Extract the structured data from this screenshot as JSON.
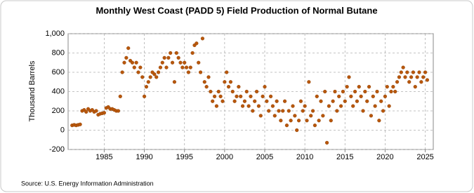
{
  "chart_data": {
    "type": "scatter",
    "title": "Monthly West Coast (PADD 5) Field Production of Normal Butane",
    "y_label": "Thousand Barrels",
    "source": "Source: U.S. Energy Information Administration",
    "color": "#b8570c",
    "grid": true,
    "xlim": [
      1980.5,
      2026
    ],
    "ylim": [
      -200,
      1000
    ],
    "xticks": [
      1985,
      1990,
      1995,
      2000,
      2005,
      2010,
      2015,
      2020,
      2025
    ],
    "yticks": [
      -200,
      0,
      200,
      400,
      600,
      800,
      {
        "value": 1000,
        "label": "1,000"
      }
    ],
    "x": [
      1981,
      1981.25,
      1981.5,
      1981.75,
      1982,
      1982.25,
      1982.5,
      1982.75,
      1983,
      1983.25,
      1983.5,
      1983.75,
      1984,
      1984.25,
      1984.5,
      1984.75,
      1985,
      1985.25,
      1985.5,
      1985.75,
      1986,
      1986.25,
      1986.5,
      1986.75,
      1987,
      1987.25,
      1987.5,
      1987.75,
      1988,
      1988.25,
      1988.5,
      1988.75,
      1989,
      1989.25,
      1989.5,
      1989.75,
      1990,
      1990.25,
      1990.5,
      1990.75,
      1991,
      1991.25,
      1991.5,
      1991.75,
      1992,
      1992.25,
      1992.5,
      1992.75,
      1993,
      1993.25,
      1993.5,
      1993.75,
      1994,
      1994.25,
      1994.5,
      1994.75,
      1995,
      1995.25,
      1995.5,
      1995.75,
      1996,
      1996.25,
      1996.5,
      1996.75,
      1997,
      1997.25,
      1997.5,
      1997.75,
      1998,
      1998.25,
      1998.5,
      1998.75,
      1999,
      1999.25,
      1999.5,
      1999.75,
      2000,
      2000.25,
      2000.5,
      2000.75,
      2001,
      2001.25,
      2001.5,
      2001.75,
      2002,
      2002.25,
      2002.5,
      2002.75,
      2003,
      2003.25,
      2003.5,
      2003.75,
      2004,
      2004.25,
      2004.5,
      2004.75,
      2005,
      2005.25,
      2005.5,
      2005.75,
      2006,
      2006.25,
      2006.5,
      2006.75,
      2007,
      2007.25,
      2007.5,
      2007.75,
      2008,
      2008.25,
      2008.5,
      2008.75,
      2009,
      2009.25,
      2009.5,
      2009.75,
      2010,
      2010.25,
      2010.5,
      2010.75,
      2011,
      2011.25,
      2011.5,
      2011.75,
      2012,
      2012.25,
      2012.5,
      2012.75,
      2013,
      2013.25,
      2013.5,
      2013.75,
      2014,
      2014.25,
      2014.5,
      2014.75,
      2015,
      2015.25,
      2015.5,
      2015.75,
      2016,
      2016.25,
      2016.5,
      2016.75,
      2017,
      2017.25,
      2017.5,
      2017.75,
      2018,
      2018.25,
      2018.5,
      2018.75,
      2019,
      2019.25,
      2019.5,
      2019.75,
      2020,
      2020.25,
      2020.5,
      2020.75,
      2021,
      2021.25,
      2021.5,
      2021.75,
      2022,
      2022.25,
      2022.5,
      2022.75,
      2023,
      2023.25,
      2023.5,
      2023.75,
      2024,
      2024.25,
      2024.5,
      2024.75,
      2025,
      2025.25
    ],
    "values": [
      50,
      55,
      50,
      55,
      60,
      200,
      210,
      190,
      220,
      200,
      210,
      190,
      200,
      160,
      170,
      175,
      180,
      230,
      240,
      220,
      220,
      210,
      200,
      200,
      350,
      600,
      700,
      750,
      850,
      720,
      700,
      650,
      700,
      600,
      650,
      550,
      350,
      450,
      500,
      550,
      600,
      580,
      550,
      600,
      650,
      700,
      750,
      650,
      750,
      800,
      700,
      500,
      800,
      750,
      700,
      650,
      700,
      650,
      600,
      650,
      800,
      880,
      900,
      700,
      600,
      950,
      500,
      450,
      550,
      400,
      300,
      350,
      250,
      400,
      350,
      300,
      500,
      600,
      450,
      500,
      400,
      300,
      350,
      450,
      350,
      250,
      300,
      400,
      250,
      350,
      200,
      300,
      400,
      250,
      150,
      350,
      450,
      300,
      200,
      350,
      250,
      150,
      300,
      200,
      100,
      200,
      300,
      50,
      200,
      100,
      250,
      150,
      0,
      100,
      300,
      200,
      250,
      100,
      500,
      150,
      200,
      50,
      350,
      100,
      300,
      150,
      400,
      -130,
      250,
      100,
      300,
      400,
      200,
      350,
      250,
      400,
      300,
      450,
      550,
      350,
      250,
      400,
      300,
      450,
      350,
      200,
      400,
      300,
      450,
      150,
      350,
      250,
      400,
      100,
      300,
      200,
      350,
      450,
      250,
      400,
      450,
      400,
      500,
      550,
      600,
      650,
      550,
      600,
      500,
      550,
      600,
      450,
      550,
      600,
      500,
      550,
      600,
      520
    ]
  }
}
